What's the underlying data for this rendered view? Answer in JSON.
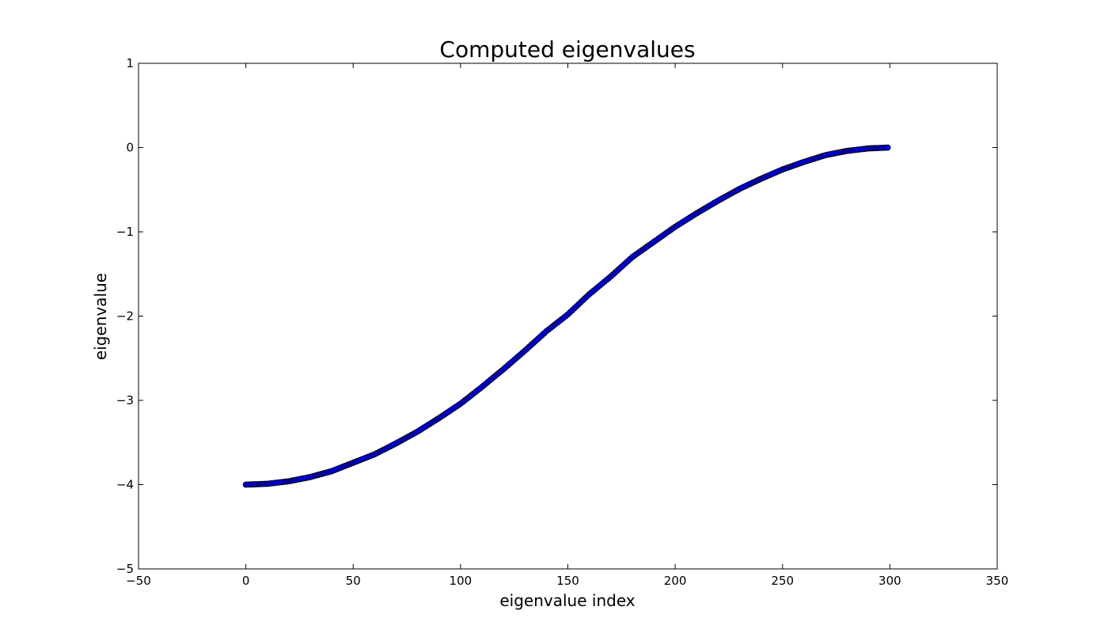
{
  "chart_data": {
    "type": "scatter",
    "title": "Computed eigenvalues",
    "xlabel": "eigenvalue index",
    "ylabel": "eigenvalue",
    "xlim": [
      -50,
      350
    ],
    "ylim": [
      -5,
      1
    ],
    "xticks": [
      -50,
      0,
      50,
      100,
      150,
      200,
      250,
      300,
      350
    ],
    "yticks": [
      1,
      0,
      -1,
      -2,
      -3,
      -4,
      -5
    ],
    "xtick_labels": [
      "−50",
      "0",
      "50",
      "100",
      "150",
      "200",
      "250",
      "300",
      "350"
    ],
    "ytick_labels": [
      "1",
      "0",
      "−1",
      "−2",
      "−3",
      "−4",
      "−5"
    ],
    "grid": false,
    "series": [
      {
        "marker_color": "#0000ff",
        "x_start": 0,
        "x_end": 299,
        "count": 300,
        "points": [
          [
            0,
            -4.0
          ],
          [
            10,
            -3.99
          ],
          [
            20,
            -3.96
          ],
          [
            30,
            -3.91
          ],
          [
            40,
            -3.84
          ],
          [
            50,
            -3.74
          ],
          [
            60,
            -3.64
          ],
          [
            70,
            -3.51
          ],
          [
            80,
            -3.37
          ],
          [
            90,
            -3.21
          ],
          [
            100,
            -3.04
          ],
          [
            110,
            -2.84
          ],
          [
            120,
            -2.63
          ],
          [
            130,
            -2.41
          ],
          [
            140,
            -2.18
          ],
          [
            150,
            -1.98
          ],
          [
            160,
            -1.74
          ],
          [
            170,
            -1.53
          ],
          [
            180,
            -1.3
          ],
          [
            190,
            -1.12
          ],
          [
            200,
            -0.94
          ],
          [
            210,
            -0.78
          ],
          [
            220,
            -0.63
          ],
          [
            230,
            -0.49
          ],
          [
            240,
            -0.37
          ],
          [
            250,
            -0.26
          ],
          [
            260,
            -0.17
          ],
          [
            270,
            -0.09
          ],
          [
            280,
            -0.04
          ],
          [
            290,
            -0.01
          ],
          [
            299,
            0.0
          ]
        ]
      }
    ]
  }
}
